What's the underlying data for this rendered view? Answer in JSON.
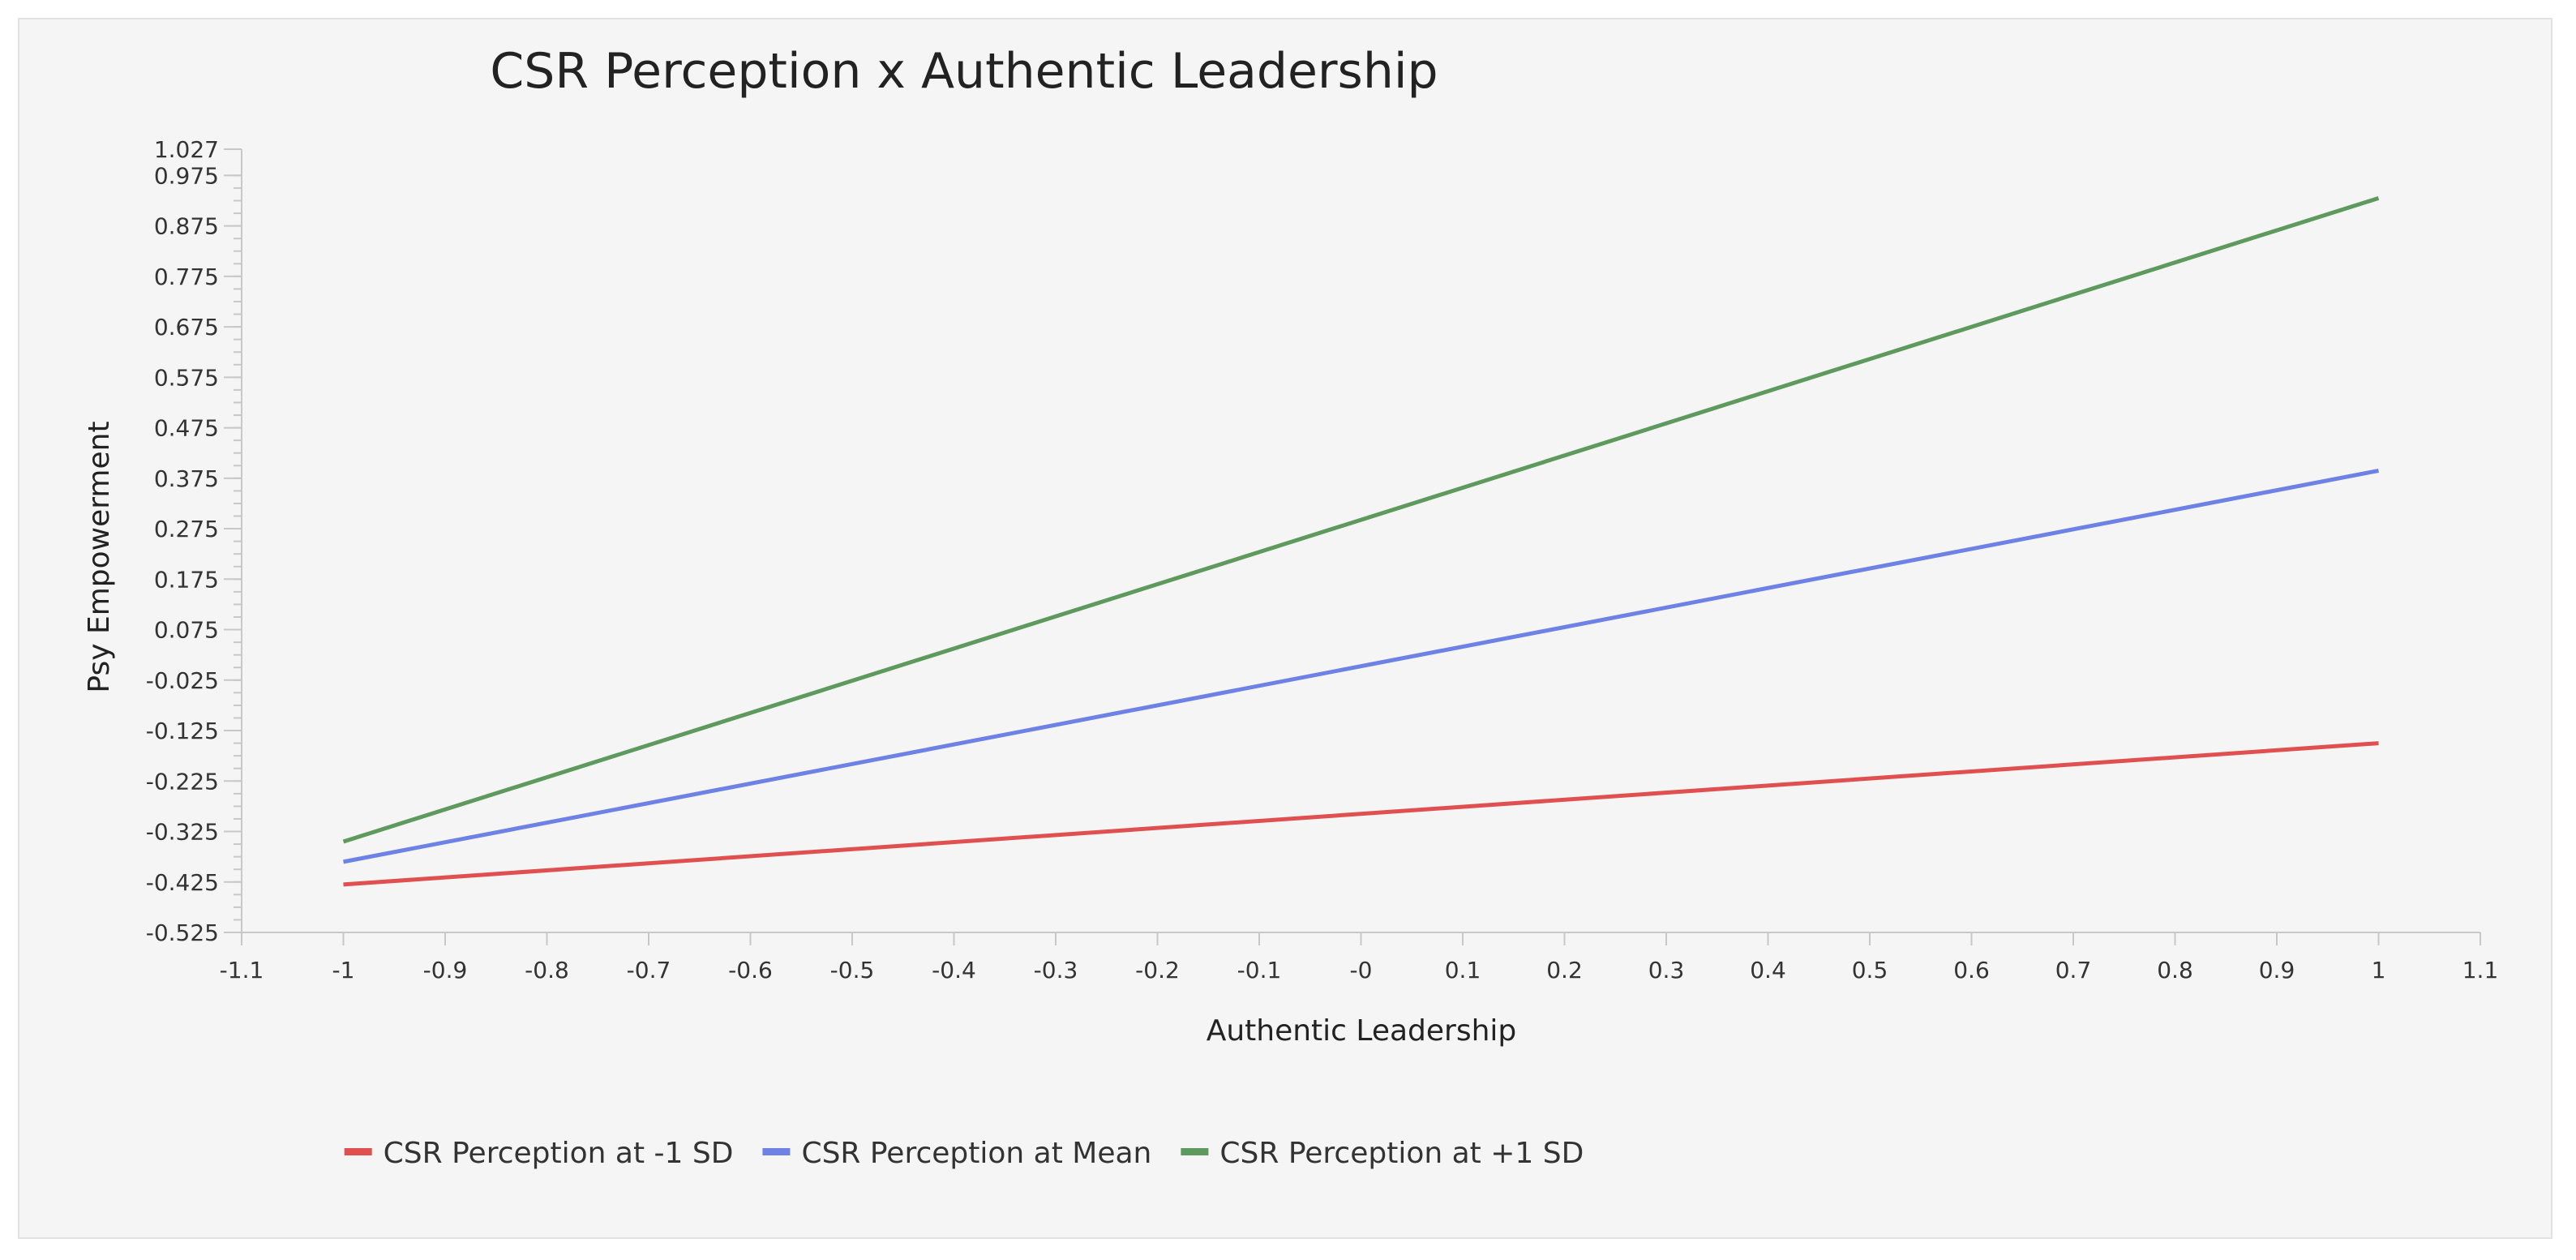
{
  "chart_data": {
    "type": "line",
    "title": "CSR Perception x Authentic Leadership",
    "xlabel": "Authentic Leadership",
    "ylabel": "Psy Empowerment",
    "xlim": [
      -1.1,
      1.1
    ],
    "ylim": [
      -0.525,
      1.027
    ],
    "x_ticks": [
      "-1.1",
      "-1",
      "-0.9",
      "-0.8",
      "-0.7",
      "-0.6",
      "-0.5",
      "-0.4",
      "-0.3",
      "-0.2",
      "-0.1",
      "-0",
      "0.1",
      "0.2",
      "0.3",
      "0.4",
      "0.5",
      "0.6",
      "0.7",
      "0.8",
      "0.9",
      "1",
      "1.1"
    ],
    "y_ticks": [
      "-0.525",
      "-0.425",
      "-0.325",
      "-0.225",
      "-0.125",
      "-0.025",
      "0.075",
      "0.175",
      "0.275",
      "0.375",
      "0.475",
      "0.575",
      "0.675",
      "0.775",
      "0.875",
      "0.975",
      "1.027"
    ],
    "grid": false,
    "legend_position": "bottom",
    "series": [
      {
        "name": "CSR Perception at -1 SD",
        "color": "#e05050",
        "x": [
          -1,
          1
        ],
        "y": [
          -0.43,
          -0.15
        ]
      },
      {
        "name": "CSR Perception at Mean",
        "color": "#6e82e6",
        "x": [
          -1,
          1
        ],
        "y": [
          -0.385,
          0.39
        ]
      },
      {
        "name": "CSR Perception at +1 SD",
        "color": "#5e9a5e",
        "x": [
          -1,
          1
        ],
        "y": [
          -0.345,
          0.93
        ]
      }
    ]
  }
}
